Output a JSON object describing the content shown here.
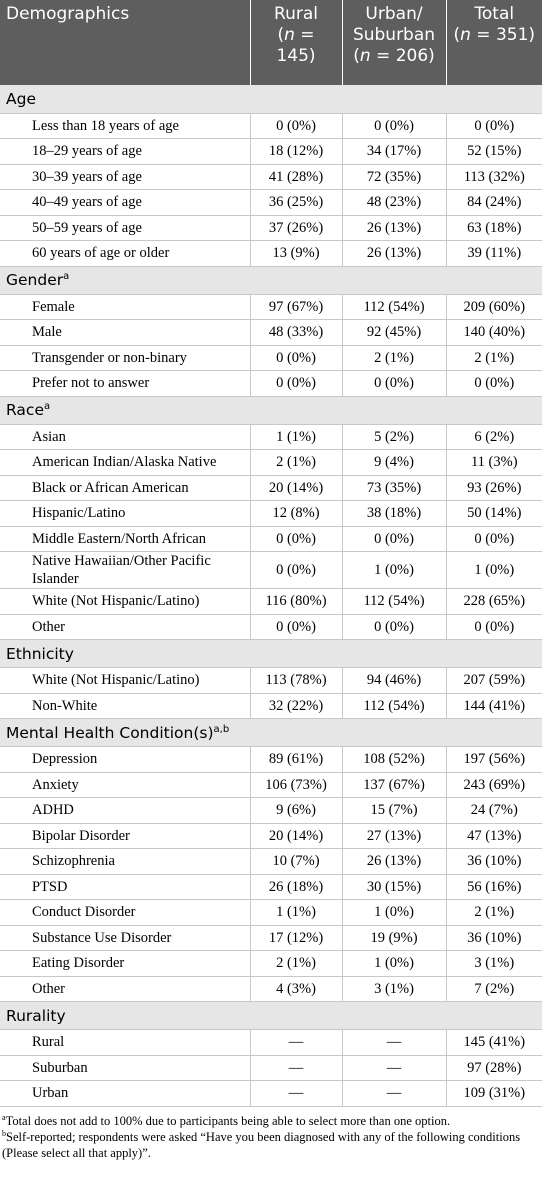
{
  "header": [
    {
      "lines": [
        [
          {
            "text": "Demographics"
          }
        ]
      ]
    },
    {
      "lines": [
        [
          {
            "text": "Rural"
          }
        ],
        [
          {
            "text": "("
          },
          {
            "text": "n",
            "italic": true
          },
          {
            "text": " = 145)"
          }
        ]
      ]
    },
    {
      "lines": [
        [
          {
            "text": "Urban/"
          }
        ],
        [
          {
            "text": "Suburban"
          }
        ],
        [
          {
            "text": "("
          },
          {
            "text": "n",
            "italic": true
          },
          {
            "text": " = 206)"
          }
        ]
      ]
    },
    {
      "lines": [
        [
          {
            "text": "Total"
          }
        ],
        [
          {
            "text": "("
          },
          {
            "text": "n",
            "italic": true
          },
          {
            "text": " = 351)"
          }
        ]
      ]
    }
  ],
  "sections": [
    {
      "label": "Age",
      "rows": [
        [
          "Less than 18 years of age",
          "0 (0%)",
          "0 (0%)",
          "0 (0%)"
        ],
        [
          "18–29 years of age",
          "18 (12%)",
          "34 (17%)",
          "52 (15%)"
        ],
        [
          "30–39 years of age",
          "41 (28%)",
          "72 (35%)",
          "113 (32%)"
        ],
        [
          "40–49 years of age",
          "36 (25%)",
          "48 (23%)",
          "84 (24%)"
        ],
        [
          "50–59 years of age",
          "37 (26%)",
          "26 (13%)",
          "63 (18%)"
        ],
        [
          "60 years of age or older",
          "13 (9%)",
          "26 (13%)",
          "39 (11%)"
        ]
      ]
    },
    {
      "label": "Gender",
      "sup": "a",
      "rows": [
        [
          "Female",
          "97 (67%)",
          "112 (54%)",
          "209 (60%)"
        ],
        [
          "Male",
          "48 (33%)",
          "92 (45%)",
          "140 (40%)"
        ],
        [
          "Transgender or non-binary",
          "0 (0%)",
          "2 (1%)",
          "2 (1%)"
        ],
        [
          "Prefer not to answer",
          "0 (0%)",
          "0 (0%)",
          "0 (0%)"
        ]
      ]
    },
    {
      "label": "Race",
      "sup": "a",
      "rows": [
        [
          "Asian",
          "1 (1%)",
          "5 (2%)",
          "6 (2%)"
        ],
        [
          "American Indian/Alaska Native",
          "2 (1%)",
          "9 (4%)",
          "11 (3%)"
        ],
        [
          "Black or African American",
          "20 (14%)",
          "73 (35%)",
          "93 (26%)"
        ],
        [
          "Hispanic/Latino",
          "12 (8%)",
          "38 (18%)",
          "50 (14%)"
        ],
        [
          "Middle Eastern/North African",
          "0 (0%)",
          "0 (0%)",
          "0 (0%)"
        ],
        [
          "Native Hawaiian/Other Pacific Islander",
          "0 (0%)",
          "1 (0%)",
          "1 (0%)"
        ],
        [
          "White (Not Hispanic/Latino)",
          "116 (80%)",
          "112 (54%)",
          "228 (65%)"
        ],
        [
          "Other",
          "0 (0%)",
          "0 (0%)",
          "0 (0%)"
        ]
      ]
    },
    {
      "label": "Ethnicity",
      "rows": [
        [
          "White (Not Hispanic/Latino)",
          "113 (78%)",
          "94 (46%)",
          "207 (59%)"
        ],
        [
          "Non-White",
          "32 (22%)",
          "112 (54%)",
          "144 (41%)"
        ]
      ]
    },
    {
      "label": "Mental Health Condition(s)",
      "sup": "a,b",
      "rows": [
        [
          "Depression",
          "89 (61%)",
          "108 (52%)",
          "197 (56%)"
        ],
        [
          "Anxiety",
          "106 (73%)",
          "137 (67%)",
          "243 (69%)"
        ],
        [
          "ADHD",
          "9 (6%)",
          "15 (7%)",
          "24 (7%)"
        ],
        [
          "Bipolar Disorder",
          "20 (14%)",
          "27 (13%)",
          "47 (13%)"
        ],
        [
          "Schizophrenia",
          "10 (7%)",
          "26 (13%)",
          "36 (10%)"
        ],
        [
          "PTSD",
          "26 (18%)",
          "30 (15%)",
          "56 (16%)"
        ],
        [
          "Conduct Disorder",
          "1 (1%)",
          "1 (0%)",
          "2 (1%)"
        ],
        [
          "Substance Use Disorder",
          "17 (12%)",
          "19 (9%)",
          "36 (10%)"
        ],
        [
          "Eating Disorder",
          "2 (1%)",
          "1 (0%)",
          "3 (1%)"
        ],
        [
          "Other",
          "4 (3%)",
          "3 (1%)",
          "7 (2%)"
        ]
      ]
    },
    {
      "label": "Rurality",
      "rows": [
        [
          "Rural",
          "—",
          "—",
          "145 (41%)"
        ],
        [
          "Suburban",
          "—",
          "—",
          "97 (28%)"
        ],
        [
          "Urban",
          "—",
          "—",
          "109 (31%)"
        ]
      ]
    }
  ],
  "footnotes": [
    {
      "mark": "a",
      "text": "Total does not add to 100% due to participants being able to select more than one option."
    },
    {
      "mark": "b",
      "text": "Self-reported; respondents were asked “Have you been diagnosed with any of the following conditions (Please select all that apply)”."
    }
  ]
}
